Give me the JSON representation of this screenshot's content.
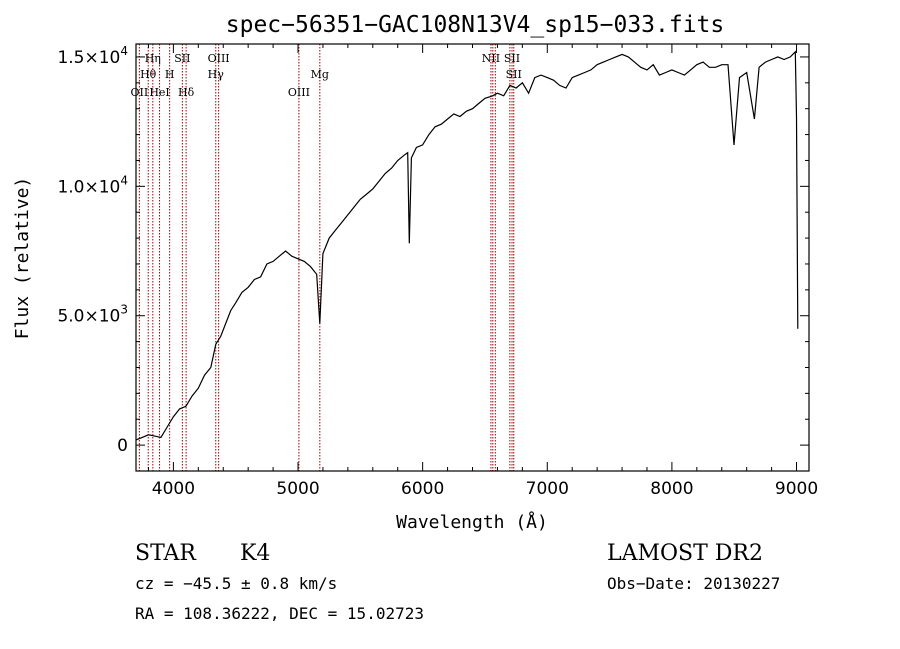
{
  "chart_data": {
    "type": "line",
    "title": "spec−56351−GAC108N13V4_sp15−033.fits",
    "xlabel": "Wavelength (Å)",
    "ylabel": "Flux (relative)",
    "xlim": [
      3700,
      9100
    ],
    "ylim": [
      -1000,
      15500
    ],
    "x_ticks": [
      {
        "value": 4000,
        "label": "4000"
      },
      {
        "value": 5000,
        "label": "5000"
      },
      {
        "value": 6000,
        "label": "6000"
      },
      {
        "value": 7000,
        "label": "7000"
      },
      {
        "value": 8000,
        "label": "8000"
      },
      {
        "value": 9000,
        "label": "9000"
      }
    ],
    "y_ticks": [
      {
        "value": 0,
        "base": "0",
        "exp": ""
      },
      {
        "value": 5000,
        "base": "5.0×10",
        "exp": "3"
      },
      {
        "value": 10000,
        "base": "1.0×10",
        "exp": "4"
      },
      {
        "value": 15000,
        "base": "1.5×10",
        "exp": "4"
      }
    ],
    "series": [
      {
        "color": "#000000",
        "x": [
          3700,
          3750,
          3800,
          3850,
          3900,
          3950,
          4000,
          4050,
          4100,
          4150,
          4200,
          4250,
          4300,
          4340,
          4380,
          4420,
          4460,
          4500,
          4550,
          4600,
          4650,
          4700,
          4750,
          4800,
          4850,
          4900,
          4950,
          5000,
          5050,
          5100,
          5150,
          5175,
          5200,
          5250,
          5300,
          5350,
          5400,
          5450,
          5500,
          5550,
          5600,
          5650,
          5700,
          5750,
          5800,
          5850,
          5880,
          5893,
          5910,
          5950,
          6000,
          6050,
          6100,
          6150,
          6200,
          6250,
          6300,
          6350,
          6400,
          6450,
          6500,
          6563,
          6600,
          6650,
          6700,
          6750,
          6800,
          6850,
          6900,
          6950,
          7000,
          7050,
          7100,
          7150,
          7200,
          7250,
          7300,
          7350,
          7400,
          7450,
          7500,
          7550,
          7600,
          7650,
          7700,
          7750,
          7800,
          7850,
          7900,
          7950,
          8000,
          8050,
          8100,
          8150,
          8200,
          8250,
          8300,
          8350,
          8400,
          8450,
          8498,
          8542,
          8600,
          8662,
          8700,
          8750,
          8800,
          8850,
          8900,
          8950,
          8990,
          9000,
          9010
        ],
        "y": [
          200,
          300,
          400,
          350,
          300,
          700,
          1100,
          1400,
          1500,
          1900,
          2200,
          2700,
          3000,
          3900,
          4200,
          4700,
          5200,
          5500,
          5900,
          6100,
          6400,
          6500,
          7000,
          7100,
          7300,
          7500,
          7300,
          7200,
          7100,
          6900,
          6600,
          4700,
          7400,
          8000,
          8300,
          8600,
          8900,
          9200,
          9500,
          9700,
          9900,
          10200,
          10500,
          10700,
          11000,
          11200,
          11300,
          7800,
          11100,
          11500,
          11600,
          12000,
          12300,
          12400,
          12600,
          12800,
          12700,
          12900,
          13000,
          13200,
          13400,
          13500,
          13600,
          13500,
          13900,
          13800,
          14000,
          13600,
          14200,
          14300,
          14200,
          14100,
          13900,
          13800,
          14200,
          14300,
          14400,
          14500,
          14700,
          14800,
          14900,
          15000,
          15100,
          15000,
          14800,
          14600,
          14500,
          14700,
          14300,
          14400,
          14500,
          14400,
          14300,
          14500,
          14700,
          14800,
          14600,
          14600,
          14700,
          14700,
          11600,
          14200,
          14400,
          12600,
          14600,
          14800,
          14900,
          15000,
          14900,
          15000,
          15200,
          12700,
          4500
        ]
      }
    ],
    "line_markers": [
      {
        "wave": 3727,
        "label": "OII",
        "row": 3
      },
      {
        "wave": 3798,
        "label": "Hθ",
        "row": 2
      },
      {
        "wave": 3835,
        "label": "Hη",
        "row": 1
      },
      {
        "wave": 3889,
        "label": "HeI",
        "row": 3
      },
      {
        "wave": 3970,
        "label": "H",
        "row": 2
      },
      {
        "wave": 4072,
        "label": "SII",
        "row": 1
      },
      {
        "wave": 4102,
        "label": "Hδ",
        "row": 3
      },
      {
        "wave": 4340,
        "label": "Hγ",
        "row": 2
      },
      {
        "wave": 4363,
        "label": "OIII",
        "row": 1
      },
      {
        "wave": 5007,
        "label": "OIII",
        "row": 3
      },
      {
        "wave": 5175,
        "label": "Mg",
        "row": 2
      },
      {
        "wave": 6548,
        "label": "NII",
        "row": 1
      },
      {
        "wave": 6563,
        "label": "",
        "row": 0
      },
      {
        "wave": 6583,
        "label": "",
        "row": 0
      },
      {
        "wave": 6717,
        "label": "SII",
        "row": 1
      },
      {
        "wave": 6731,
        "label": "SII",
        "row": 2
      },
      {
        "wave": 6700,
        "label": "",
        "row": 0
      }
    ],
    "grid": false,
    "legend": "none"
  },
  "info": {
    "object_class": "STAR",
    "subclass": "K4",
    "survey": "LAMOST DR2",
    "redshift": "cz = −45.5 ± 0.8 km/s",
    "obs_date": "Obs−Date: 20130227",
    "coords": "RA = 108.36222, DEC =  15.02723"
  }
}
